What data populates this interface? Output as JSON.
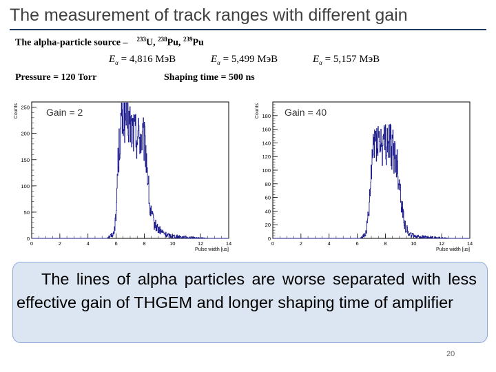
{
  "slide": {
    "title": "The measurement of track ranges with different gain",
    "source_label": "The alpha-particle source –",
    "isotopes": [
      {
        "mass": "233",
        "symbol": "U,"
      },
      {
        "mass": "238",
        "symbol": "Pu,"
      },
      {
        "mass": "239",
        "symbol": "Pu"
      }
    ],
    "energies": [
      {
        "symbol": "E",
        "subscript": "α",
        "value": "= 4,816 МэВ"
      },
      {
        "symbol": "E",
        "subscript": "α",
        "value": "= 5,499 МэВ"
      },
      {
        "symbol": "E",
        "subscript": "α",
        "value": "= 5,157 МэВ"
      }
    ],
    "pressure": "Pressure = 120 Torr",
    "shaping_time": "Shaping time = 500 ns",
    "conclusion": "The lines of alpha particles are worse separated with less effective gain of THGEM and longer shaping time of amplifier",
    "page_number": "20",
    "colors": {
      "histogram": "#1a1a8c",
      "title_rule": "#1f3864",
      "note_bg": "#dce6f2",
      "note_border": "#8ea9db"
    }
  },
  "chart_data": [
    {
      "type": "histogram",
      "gain_label": "Gain = 2",
      "xlabel": "Pulse width [us]",
      "ylabel": "Counts",
      "xlim": [
        0,
        14
      ],
      "ylim": [
        0,
        260
      ],
      "x_ticks": [
        "0",
        "2",
        "4",
        "6",
        "8",
        "10",
        "12",
        "14"
      ],
      "y_ticks": [
        "0",
        "50",
        "100",
        "150",
        "200",
        "250"
      ],
      "y_tick_values": [
        0,
        50,
        100,
        150,
        200,
        250
      ],
      "profile": [
        [
          0,
          0
        ],
        [
          5.3,
          0
        ],
        [
          5.8,
          8
        ],
        [
          6.0,
          40
        ],
        [
          6.1,
          130
        ],
        [
          6.3,
          205
        ],
        [
          6.5,
          232
        ],
        [
          6.8,
          228
        ],
        [
          7.0,
          215
        ],
        [
          7.3,
          200
        ],
        [
          7.6,
          195
        ],
        [
          7.9,
          190
        ],
        [
          8.1,
          170
        ],
        [
          8.25,
          120
        ],
        [
          8.4,
          55
        ],
        [
          8.7,
          28
        ],
        [
          9.1,
          15
        ],
        [
          9.6,
          6
        ],
        [
          10.5,
          3
        ],
        [
          11.5,
          1
        ],
        [
          12.5,
          0
        ],
        [
          14,
          0
        ]
      ]
    },
    {
      "type": "histogram",
      "gain_label": "Gain = 40",
      "xlabel": "Pulse width [us]",
      "ylabel": "Counts",
      "xlim": [
        0,
        14
      ],
      "ylim": [
        0,
        200
      ],
      "x_ticks": [
        "0",
        "2",
        "4",
        "6",
        "8",
        "10",
        "12",
        "14"
      ],
      "y_ticks": [
        "0",
        "20",
        "40",
        "60",
        "80",
        "100",
        "120",
        "140",
        "160",
        "180"
      ],
      "y_tick_values": [
        0,
        20,
        40,
        60,
        80,
        100,
        120,
        140,
        160,
        180
      ],
      "profile": [
        [
          0,
          0
        ],
        [
          6.2,
          0
        ],
        [
          6.6,
          6
        ],
        [
          6.85,
          40
        ],
        [
          7.0,
          95
        ],
        [
          7.15,
          138
        ],
        [
          7.4,
          150
        ],
        [
          7.6,
          140
        ],
        [
          7.9,
          135
        ],
        [
          8.2,
          142
        ],
        [
          8.5,
          132
        ],
        [
          8.8,
          112
        ],
        [
          9.0,
          82
        ],
        [
          9.2,
          42
        ],
        [
          9.45,
          15
        ],
        [
          9.8,
          5
        ],
        [
          10.5,
          2
        ],
        [
          11.5,
          1
        ],
        [
          12.5,
          0
        ],
        [
          14,
          0
        ]
      ]
    }
  ]
}
